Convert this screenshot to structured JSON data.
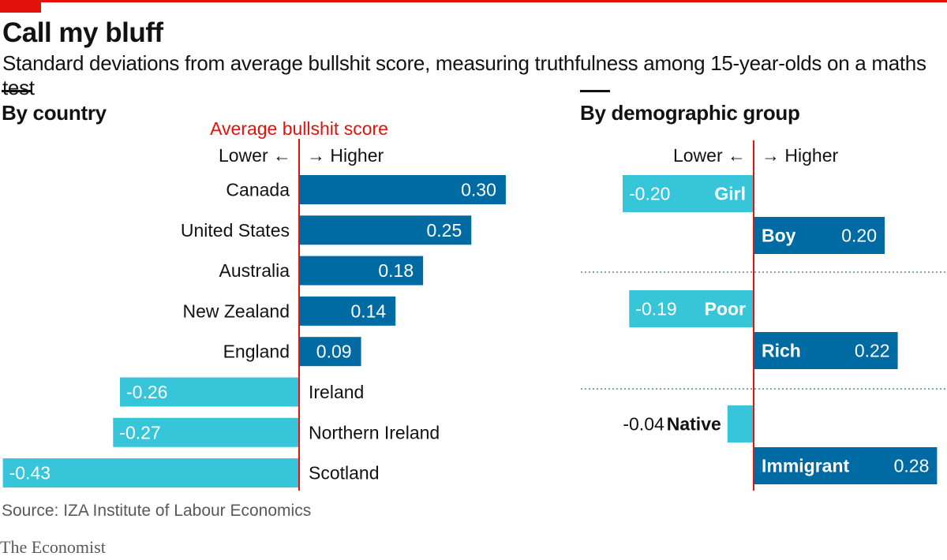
{
  "title": "Call my bluff",
  "subtitle": "Standard deviations from average bullshit score, measuring truthfulness among 15-year-olds on a maths test",
  "source": "Source: IZA Institute of Labour Economics",
  "brand": "The Economist",
  "colors": {
    "accent_red": "#e3120b",
    "positive": "#006ba2",
    "negative": "#36c5d9",
    "text": "#121212",
    "muted": "#595959"
  },
  "chart_data": [
    {
      "type": "bar",
      "orientation": "horizontal",
      "title": "By country",
      "reference_label": "Average bullshit score",
      "direction_lower": "Lower ←",
      "direction_higher": "→ Higher",
      "categories": [
        "Canada",
        "United States",
        "Australia",
        "New Zealand",
        "England",
        "Ireland",
        "Northern Ireland",
        "Scotland"
      ],
      "values": [
        0.3,
        0.25,
        0.18,
        0.14,
        0.09,
        -0.26,
        -0.27,
        -0.43
      ],
      "value_labels": [
        "0.30",
        "0.25",
        "0.18",
        "0.14",
        "0.09",
        "-0.26",
        "-0.27",
        "-0.43"
      ]
    },
    {
      "type": "bar",
      "orientation": "horizontal",
      "title": "By demographic group",
      "direction_lower": "Lower ←",
      "direction_higher": "→ Higher",
      "groups": [
        {
          "categories": [
            "Girl",
            "Boy"
          ],
          "values": [
            -0.2,
            0.2
          ],
          "value_labels": [
            "-0.20",
            "0.20"
          ]
        },
        {
          "categories": [
            "Poor",
            "Rich"
          ],
          "values": [
            -0.19,
            0.22
          ],
          "value_labels": [
            "-0.19",
            "0.22"
          ]
        },
        {
          "categories": [
            "Native",
            "Immigrant"
          ],
          "values": [
            -0.04,
            0.28
          ],
          "value_labels": [
            "-0.04",
            "0.28"
          ]
        }
      ]
    }
  ]
}
